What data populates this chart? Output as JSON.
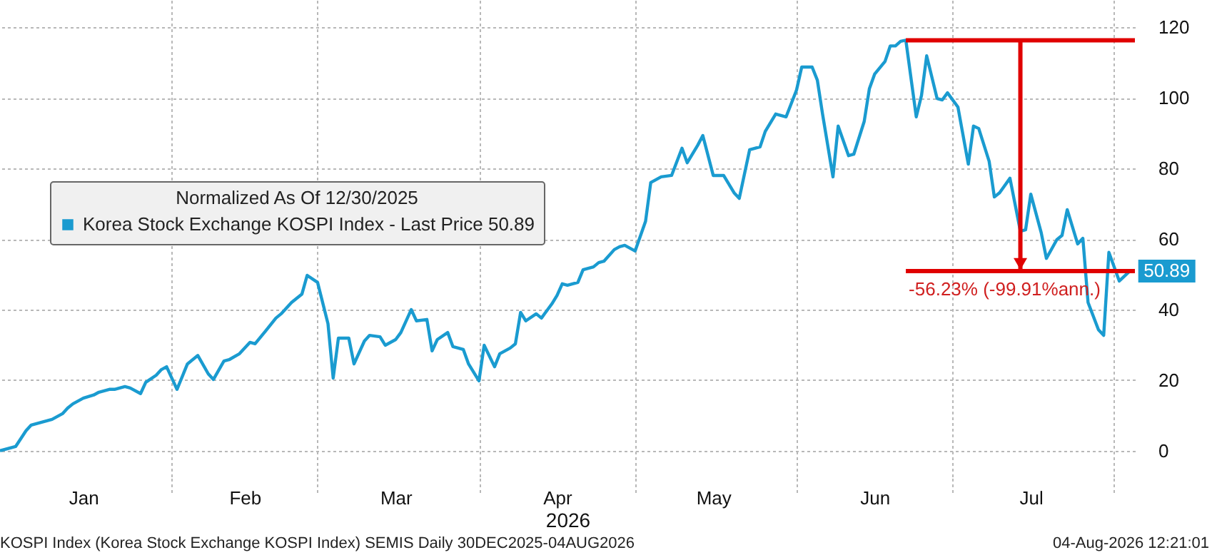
{
  "chart_data": {
    "type": "line",
    "legend_title": "Normalized As Of 12/30/2025",
    "xlabel": "2026",
    "x": [
      "2025-12-30",
      "2026-01-02",
      "2026-01-04",
      "2026-01-05",
      "2026-01-07",
      "2026-01-09",
      "2026-01-11",
      "2026-01-12",
      "2026-01-13",
      "2026-01-15",
      "2026-01-17",
      "2026-01-18",
      "2026-01-20",
      "2026-01-21",
      "2026-01-23",
      "2026-01-24",
      "2026-01-26",
      "2026-01-27",
      "2026-01-29",
      "2026-01-30",
      "2026-01-31",
      "2026-02-02",
      "2026-02-04",
      "2026-02-06",
      "2026-02-08",
      "2026-02-09",
      "2026-02-11",
      "2026-02-12",
      "2026-02-14",
      "2026-02-16",
      "2026-02-17",
      "2026-02-19",
      "2026-02-21",
      "2026-02-22",
      "2026-02-24",
      "2026-02-26",
      "2026-02-27",
      "2026-03-01",
      "2026-03-03",
      "2026-03-04",
      "2026-03-05",
      "2026-03-07",
      "2026-03-08",
      "2026-03-10",
      "2026-03-11",
      "2026-03-13",
      "2026-03-14",
      "2026-03-16",
      "2026-03-17",
      "2026-03-19",
      "2026-03-20",
      "2026-03-22",
      "2026-03-23",
      "2026-03-24",
      "2026-03-26",
      "2026-03-27",
      "2026-03-29",
      "2026-03-30",
      "2026-04-01",
      "2026-04-02",
      "2026-04-04",
      "2026-04-05",
      "2026-04-07",
      "2026-04-08",
      "2026-04-09",
      "2026-04-10",
      "2026-04-12",
      "2026-04-13",
      "2026-04-15",
      "2026-04-16",
      "2026-04-17",
      "2026-04-18",
      "2026-04-20",
      "2026-04-21",
      "2026-04-23",
      "2026-04-24",
      "2026-04-25",
      "2026-04-27",
      "2026-04-28",
      "2026-04-29",
      "2026-05-01",
      "2026-05-03",
      "2026-05-04",
      "2026-05-06",
      "2026-05-08",
      "2026-05-10",
      "2026-05-11",
      "2026-05-13",
      "2026-05-14",
      "2026-05-16",
      "2026-05-18",
      "2026-05-20",
      "2026-05-21",
      "2026-05-23",
      "2026-05-25",
      "2026-05-26",
      "2026-05-28",
      "2026-05-30",
      "2026-06-01",
      "2026-06-02",
      "2026-06-04",
      "2026-06-05",
      "2026-06-06",
      "2026-06-08",
      "2026-06-09",
      "2026-06-11",
      "2026-06-12",
      "2026-06-14",
      "2026-06-15",
      "2026-06-16",
      "2026-06-18",
      "2026-06-19",
      "2026-06-20",
      "2026-06-21",
      "2026-06-22",
      "2026-06-24",
      "2026-06-25",
      "2026-06-26",
      "2026-06-28",
      "2026-06-29",
      "2026-06-30",
      "2026-07-02",
      "2026-07-04",
      "2026-07-05",
      "2026-07-06",
      "2026-07-08",
      "2026-07-09",
      "2026-07-10",
      "2026-07-12",
      "2026-07-14",
      "2026-07-15",
      "2026-07-16",
      "2026-07-18",
      "2026-07-19",
      "2026-07-21",
      "2026-07-22",
      "2026-07-23",
      "2026-07-25",
      "2026-07-26",
      "2026-07-27",
      "2026-07-29",
      "2026-07-30",
      "2026-07-31",
      "2026-08-02",
      "2026-08-04"
    ],
    "series": [
      {
        "name": "Korea Stock Exchange KOSPI Index - Last Price 50.89",
        "color": "#1a9bd0",
        "values": [
          0,
          1.2,
          5.7,
          7.3,
          8.1,
          8.9,
          10.5,
          12.1,
          13.3,
          14.9,
          15.8,
          16.6,
          17.4,
          17.4,
          18.2,
          17.8,
          16.2,
          19.4,
          21.4,
          23,
          23.8,
          17.4,
          24.6,
          27,
          21.8,
          20.2,
          25.4,
          25.8,
          27.5,
          30.7,
          30.3,
          33.9,
          37.6,
          38.8,
          42,
          44.4,
          49.7,
          47.7,
          36,
          20.6,
          31.9,
          31.9,
          24.6,
          31.1,
          32.7,
          32.3,
          29.9,
          31.5,
          33.5,
          40,
          36.8,
          37.2,
          28.3,
          31.5,
          33.5,
          29.5,
          28.7,
          24.6,
          19.8,
          29.9,
          23.8,
          27.5,
          29.1,
          30.3,
          39.2,
          36.8,
          38.8,
          37.6,
          41.6,
          44,
          47.3,
          46.9,
          47.7,
          51.3,
          52.1,
          53.3,
          53.7,
          57,
          57.8,
          58.2,
          56.6,
          65,
          76,
          77.6,
          78,
          85.7,
          81.6,
          86.5,
          89.3,
          78,
          78,
          73.1,
          71.5,
          85.3,
          86.1,
          90.5,
          95.4,
          94.6,
          102.2,
          108.7,
          108.7,
          105,
          95.4,
          77.6,
          92,
          83.6,
          84,
          93.3,
          102.6,
          106.7,
          110.3,
          114.7,
          114.7,
          116,
          116.3,
          94.6,
          100.6,
          111.9,
          99.8,
          99.4,
          101.4,
          97.4,
          81.2,
          92,
          91.3,
          82,
          71.9,
          73.1,
          77.2,
          62.2,
          62.6,
          72.7,
          61.8,
          54.5,
          59.8,
          61,
          68.3,
          58.6,
          60.2,
          42,
          34.3,
          32.7,
          56.2,
          48.1,
          50.89
        ]
      }
    ],
    "xlim": [
      "2025-12-30",
      "2026-08-05"
    ],
    "xticks": [
      {
        "value": "2026-01-15",
        "label": "Jan"
      },
      {
        "value": "2026-02-01",
        "label": null
      },
      {
        "value": "2026-02-15",
        "label": "Feb"
      },
      {
        "value": "2026-03-01",
        "label": null
      },
      {
        "value": "2026-03-16",
        "label": "Mar"
      },
      {
        "value": "2026-04-01",
        "label": null
      },
      {
        "value": "2026-04-16",
        "label": "Apr"
      },
      {
        "value": "2026-05-01",
        "label": null
      },
      {
        "value": "2026-05-16",
        "label": "May"
      },
      {
        "value": "2026-06-01",
        "label": null
      },
      {
        "value": "2026-06-16",
        "label": "Jun"
      },
      {
        "value": "2026-07-01",
        "label": null
      },
      {
        "value": "2026-07-16",
        "label": "Jul"
      },
      {
        "value": "2026-08-01",
        "label": null
      }
    ],
    "ylim": [
      -7.7,
      127.7
    ],
    "yticks": [
      0,
      20,
      40,
      60,
      80,
      100,
      120
    ],
    "grid": true,
    "legend": "left",
    "ref_lines": [
      {
        "axis": "y",
        "value": 116.3,
        "label": null,
        "color": "#e00000"
      },
      {
        "axis": "y",
        "value": 50.89,
        "label": "-56.23% (-99.91%ann.)",
        "color": "#e00000"
      }
    ],
    "annotations": [
      {
        "text": "50.89",
        "x": "2026-08-04",
        "y": 50.89
      },
      "KOSPI Index (Korea Stock Exchange KOSPI Index) SEMIS Daily 30DEC2025-04AUG2026",
      "04-Aug-2026 12:21:01"
    ]
  }
}
